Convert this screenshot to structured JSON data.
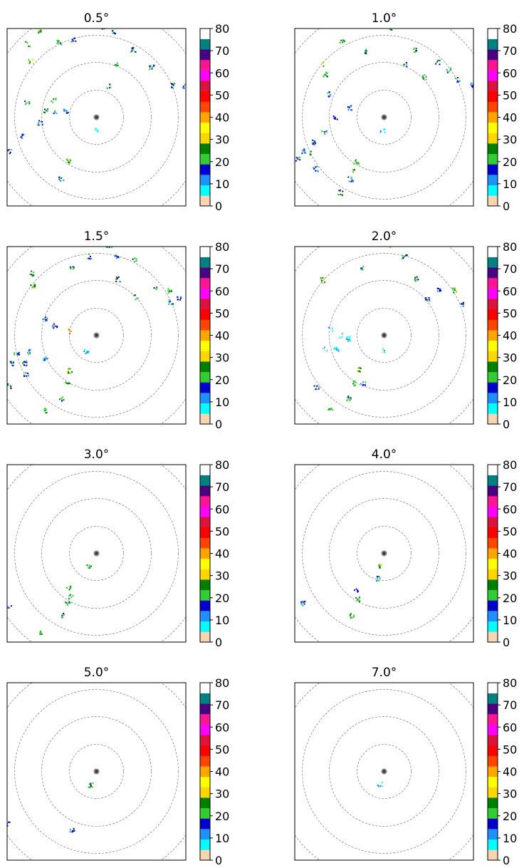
{
  "colorbar": {
    "ticks": [
      "0",
      "10",
      "20",
      "30",
      "40",
      "50",
      "60",
      "70",
      "80"
    ],
    "colors": [
      "#f9d4b0",
      "#00ffff",
      "#1e90ff",
      "#0000cd",
      "#32cd32",
      "#008000",
      "#ffd700",
      "#ffff00",
      "#ffa500",
      "#ff4500",
      "#ff0000",
      "#dc143c",
      "#ff00ff",
      "#ff1493",
      "#4b0082",
      "#008080",
      "#ffffff"
    ]
  },
  "chart_data": [
    {
      "type": "scatter",
      "title": "0.5°",
      "range_rings": 3,
      "value_range": [
        0,
        80
      ],
      "echoes": [
        [
          -0.73,
          0.78,
          25
        ],
        [
          -0.7,
          0.6,
          28
        ],
        [
          -0.6,
          0.91,
          27
        ],
        [
          -0.4,
          0.8,
          22
        ],
        [
          -0.25,
          0.82,
          18
        ],
        [
          0.08,
          0.96,
          26
        ],
        [
          0.18,
          0.91,
          20
        ],
        [
          0.38,
          0.72,
          21
        ],
        [
          0.2,
          0.57,
          24
        ],
        [
          0.58,
          0.54,
          19
        ],
        [
          0.8,
          0.34,
          20
        ],
        [
          0.92,
          0.33,
          17
        ],
        [
          0.13,
          0.33,
          22
        ],
        [
          -0.55,
          0.07,
          24
        ],
        [
          -0.44,
          0.07,
          19
        ],
        [
          -0.33,
          0.07,
          12
        ],
        [
          -0.6,
          -0.05,
          17
        ],
        [
          -0.78,
          -0.19,
          16
        ],
        [
          -0.92,
          -0.35,
          19
        ],
        [
          -0.3,
          -0.45,
          26
        ],
        [
          -0.38,
          -0.65,
          19
        ],
        [
          -0.74,
          0.17,
          22
        ],
        [
          -0.46,
          0.19,
          25
        ],
        [
          -0.01,
          -0.12,
          8
        ]
      ]
    },
    {
      "type": "scatter",
      "title": "1.0°",
      "range_rings": 3,
      "value_range": [
        0,
        80
      ],
      "echoes": [
        [
          -0.66,
          0.57,
          27
        ],
        [
          -0.63,
          0.46,
          24
        ],
        [
          -0.22,
          0.7,
          22
        ],
        [
          -0.45,
          0.81,
          25
        ],
        [
          0.06,
          0.95,
          28
        ],
        [
          0.33,
          0.71,
          23
        ],
        [
          0.56,
          0.59,
          21
        ],
        [
          0.68,
          0.5,
          18
        ],
        [
          0.77,
          0.4,
          19
        ],
        [
          0.42,
          0.43,
          22
        ],
        [
          0.93,
          0.35,
          16
        ],
        [
          0.21,
          0.56,
          20
        ],
        [
          -0.58,
          0.25,
          19
        ],
        [
          -0.37,
          0.11,
          17
        ],
        [
          -0.52,
          0.0,
          15
        ],
        [
          -0.64,
          -0.15,
          18
        ],
        [
          -0.75,
          -0.26,
          19
        ],
        [
          -0.85,
          -0.35,
          17
        ],
        [
          -0.92,
          -0.43,
          21
        ],
        [
          -0.78,
          -0.38,
          25
        ],
        [
          -0.3,
          -0.46,
          24
        ],
        [
          -0.32,
          -0.55,
          26
        ],
        [
          -0.36,
          -0.65,
          19
        ],
        [
          -0.47,
          -0.79,
          22
        ],
        [
          -0.73,
          -0.54,
          17
        ],
        [
          -0.02,
          -0.13,
          9
        ]
      ]
    },
    {
      "type": "scatter",
      "title": "1.5°",
      "range_rings": 3,
      "value_range": [
        0,
        80
      ],
      "echoes": [
        [
          -0.69,
          0.66,
          25
        ],
        [
          -0.68,
          0.53,
          28
        ],
        [
          -0.26,
          0.73,
          21
        ],
        [
          -0.08,
          0.84,
          19
        ],
        [
          0.13,
          0.95,
          27
        ],
        [
          0.21,
          0.84,
          18
        ],
        [
          0.4,
          0.8,
          21
        ],
        [
          0.22,
          0.6,
          23
        ],
        [
          0.41,
          0.41,
          20
        ],
        [
          0.61,
          0.49,
          22
        ],
        [
          0.77,
          0.48,
          24
        ],
        [
          0.87,
          0.4,
          19
        ],
        [
          0.78,
          0.36,
          17
        ],
        [
          -0.55,
          0.18,
          18
        ],
        [
          -0.45,
          0.1,
          15
        ],
        [
          -0.3,
          0.05,
          45
        ],
        [
          -0.73,
          -0.17,
          17
        ],
        [
          -0.85,
          -0.19,
          19
        ],
        [
          -0.77,
          -0.29,
          21
        ],
        [
          -0.9,
          -0.29,
          18
        ],
        [
          -0.75,
          -0.4,
          17
        ],
        [
          -0.92,
          -0.53,
          20
        ],
        [
          -0.29,
          -0.37,
          28
        ],
        [
          -0.31,
          -0.5,
          25
        ],
        [
          -0.37,
          -0.67,
          22
        ],
        [
          -0.56,
          -0.79,
          25
        ],
        [
          -0.55,
          -0.25,
          11
        ],
        [
          -0.11,
          -0.16,
          9
        ]
      ]
    },
    {
      "type": "scatter",
      "title": "2.0°",
      "range_rings": 3,
      "value_range": [
        0,
        80
      ],
      "echoes": [
        [
          -0.66,
          0.59,
          28
        ],
        [
          -0.23,
          0.71,
          19
        ],
        [
          0.08,
          0.95,
          25
        ],
        [
          0.21,
          0.84,
          18
        ],
        [
          0.33,
          0.6,
          22
        ],
        [
          0.45,
          0.39,
          20
        ],
        [
          0.58,
          0.49,
          19
        ],
        [
          0.73,
          0.48,
          26
        ],
        [
          0.82,
          0.33,
          17
        ],
        [
          -0.57,
          0.07,
          7
        ],
        [
          -0.47,
          0.0,
          6
        ],
        [
          -0.51,
          -0.14,
          8
        ],
        [
          -0.63,
          -0.14,
          7
        ],
        [
          -0.38,
          -0.03,
          9
        ],
        [
          -0.28,
          -0.36,
          28
        ],
        [
          -0.32,
          -0.5,
          24
        ],
        [
          -0.38,
          -0.66,
          21
        ],
        [
          -0.57,
          -0.79,
          25
        ],
        [
          -0.72,
          -0.55,
          18
        ],
        [
          -0.02,
          -0.15,
          9
        ],
        [
          -0.23,
          -0.5,
          17
        ]
      ]
    },
    {
      "type": "scatter",
      "title": "3.0°",
      "range_rings": 3,
      "value_range": [
        0,
        80
      ],
      "echoes": [
        [
          -0.3,
          -0.36,
          26
        ],
        [
          -0.28,
          -0.45,
          24
        ],
        [
          -0.31,
          -0.52,
          19
        ],
        [
          -0.36,
          -0.65,
          21
        ],
        [
          -0.93,
          -0.57,
          16
        ],
        [
          -0.61,
          -0.84,
          25
        ],
        [
          -0.08,
          -0.13,
          24
        ]
      ]
    },
    {
      "type": "scatter",
      "title": "4.0°",
      "range_rings": 3,
      "value_range": [
        0,
        80
      ],
      "echoes": [
        [
          -0.86,
          -0.52,
          17
        ],
        [
          -0.35,
          -0.65,
          25
        ],
        [
          -0.28,
          -0.48,
          27
        ],
        [
          -0.3,
          -0.38,
          18
        ],
        [
          -0.06,
          -0.13,
          26
        ],
        [
          -0.07,
          -0.26,
          19
        ]
      ]
    },
    {
      "type": "scatter",
      "title": "5.0°",
      "range_rings": 3,
      "value_range": [
        0,
        80
      ],
      "echoes": [
        [
          -0.95,
          -0.55,
          15
        ],
        [
          -0.26,
          -0.62,
          18
        ],
        [
          -0.07,
          -0.14,
          24
        ]
      ]
    },
    {
      "type": "scatter",
      "title": "7.0°",
      "range_rings": 3,
      "value_range": [
        0,
        80
      ],
      "echoes": [
        [
          -0.05,
          -0.13,
          9
        ]
      ]
    }
  ]
}
